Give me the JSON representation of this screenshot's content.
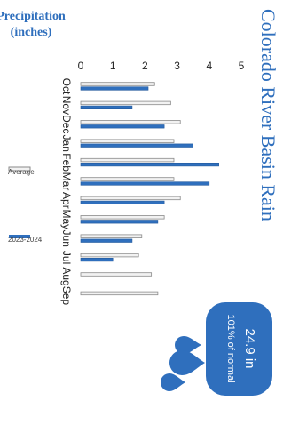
{
  "chart_data": {
    "type": "bar",
    "title": "Colorado River Basin Rain",
    "ylabel": "Precipitation (inches)",
    "ylabel_line1": "Precipitation",
    "ylabel_line2": "(inches)",
    "xlabel": "",
    "categories": [
      "Oct",
      "Nov",
      "Dec",
      "Jan",
      "Feb",
      "Mar",
      "Apr",
      "May",
      "Jun",
      "Jul",
      "Aug",
      "Sep"
    ],
    "yticks": [
      "0",
      "1",
      "2",
      "3",
      "4",
      "5"
    ],
    "ylim": [
      0,
      5
    ],
    "grid": false,
    "legend_position": "bottom",
    "series": [
      {
        "name": "Average",
        "values": [
          2.3,
          2.8,
          3.1,
          2.9,
          2.9,
          2.9,
          3.1,
          2.6,
          1.9,
          1.8,
          2.2,
          2.4
        ],
        "color": "#f2f2f2",
        "stroke": "#8a8a8a"
      },
      {
        "name": "2023-2024",
        "values": [
          2.1,
          1.6,
          2.6,
          3.5,
          4.3,
          4.0,
          2.6,
          2.4,
          1.6,
          1.0,
          null,
          null
        ],
        "color": "#2f6fbd",
        "stroke": "#245a9c"
      }
    ],
    "callout": {
      "value": "24.9 in",
      "note": "101% of normal",
      "color": "#2f6fbd"
    }
  }
}
